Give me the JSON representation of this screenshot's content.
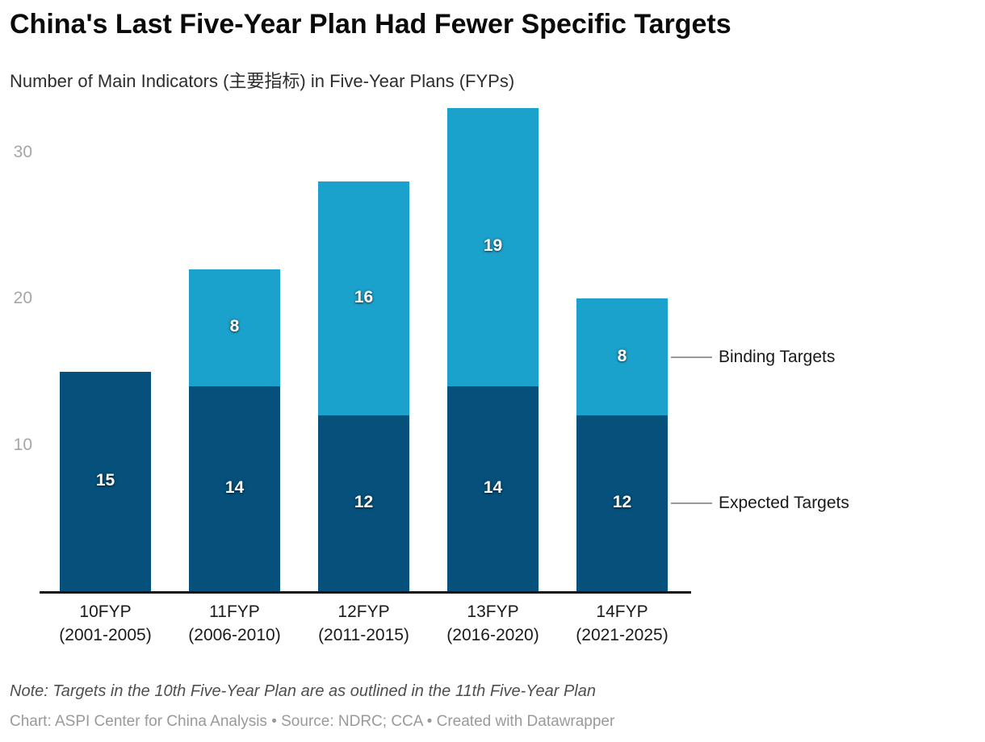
{
  "header": {
    "title": "China's Last Five-Year Plan Had Fewer Specific Targets",
    "subtitle": "Number of Main Indicators (主要指标) in Five-Year Plans (FYPs)"
  },
  "chart_data": {
    "type": "bar",
    "stacked": true,
    "title": "China's Last Five-Year Plan Had Fewer Specific Targets",
    "subtitle": "Number of Main Indicators (主要指标) in Five-Year Plans (FYPs)",
    "categories": [
      {
        "label": "10FYP",
        "years": "(2001-2005)"
      },
      {
        "label": "11FYP",
        "years": "(2006-2010)"
      },
      {
        "label": "12FYP",
        "years": "(2011-2015)"
      },
      {
        "label": "13FYP",
        "years": "(2016-2020)"
      },
      {
        "label": "14FYP",
        "years": "(2021-2025)"
      }
    ],
    "series": [
      {
        "name": "Expected Targets",
        "color": "#05517b",
        "values": [
          15,
          14,
          12,
          14,
          12
        ]
      },
      {
        "name": "Binding Targets",
        "color": "#1ba2cc",
        "values": [
          0,
          8,
          16,
          19,
          8
        ]
      }
    ],
    "totals": [
      15,
      22,
      28,
      33,
      20
    ],
    "yticks": [
      10,
      20,
      30
    ],
    "ylim": [
      0,
      33
    ],
    "grid": false,
    "legend_position": "right-annotations",
    "value_labels_shown": true
  },
  "footer": {
    "note": "Note: Targets in the 10th Five-Year Plan are as outlined in the 11th Five-Year Plan",
    "credit": "Chart: ASPI Center for China Analysis • Source: NDRC; CCA • Created with Datawrapper"
  }
}
